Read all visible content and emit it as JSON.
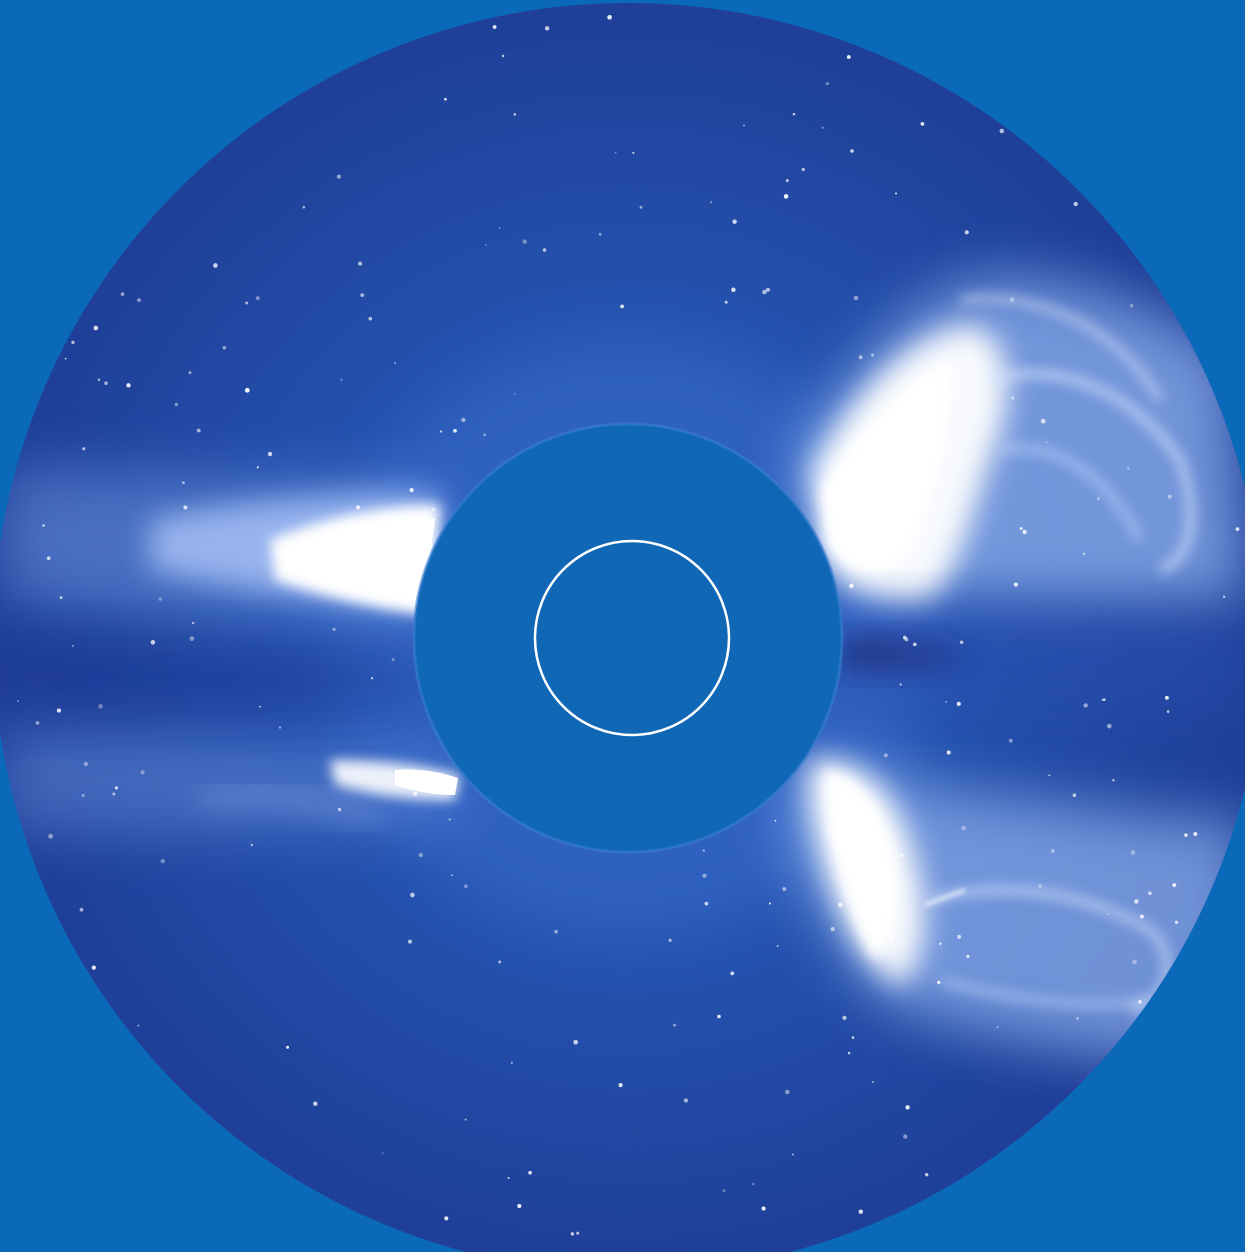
{
  "image": {
    "subject": "coronagraph",
    "colors": {
      "background": "#0a6ab9",
      "field_deep": "#1f3f9a",
      "field_mid": "#2454b0",
      "occulter": "#0f67b5",
      "limb_circle": "#ffffff",
      "streamer_core": "#ffffff",
      "streamer_glow": "#bcd2ff",
      "dark_lane": "#1a2266"
    },
    "features": [
      "occulter-disk",
      "solar-limb-circle",
      "west-upper-cme-lobe",
      "west-lower-cme-lobe",
      "east-upper-streamer",
      "east-lower-streamer",
      "dark-equatorial-lane",
      "background-stars"
    ]
  }
}
